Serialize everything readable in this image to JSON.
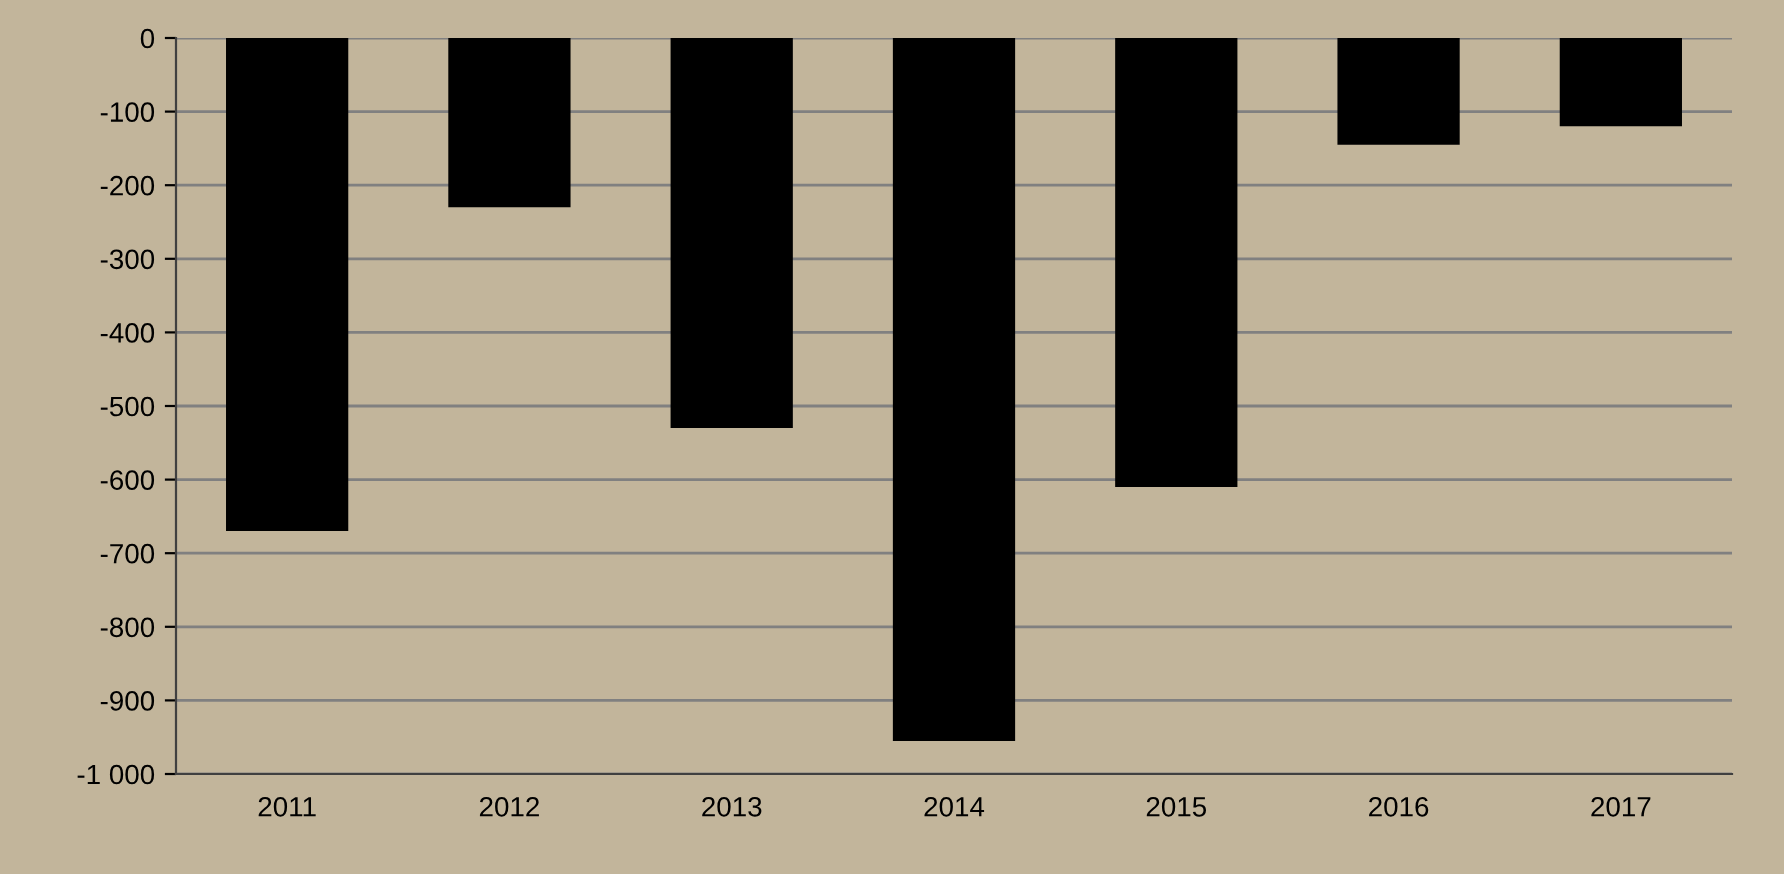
{
  "chart_data": {
    "type": "bar",
    "categories": [
      "2011",
      "2012",
      "2013",
      "2014",
      "2015",
      "2016",
      "2017"
    ],
    "values": [
      -670,
      -230,
      -530,
      -955,
      -610,
      -145,
      -120
    ],
    "color": "#000000",
    "ylim": [
      -1000,
      0
    ],
    "yticks": [
      {
        "value": -1000,
        "label": "-1 000"
      },
      -900,
      -800,
      -700,
      -600,
      -500,
      -400,
      -300,
      -200,
      -100,
      0
    ],
    "grid": "y",
    "legend": false
  }
}
